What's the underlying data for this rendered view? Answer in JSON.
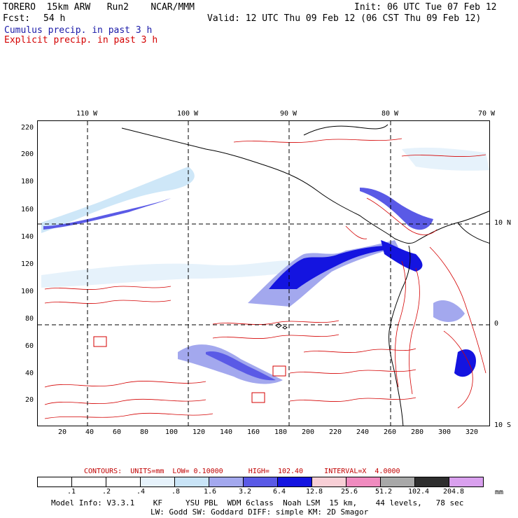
{
  "header": {
    "model": "TORERO  15km ARW   Run2    NCAR/MMM",
    "init": "Init: 06 UTC Tue 07 Feb 12",
    "fcst_label": "Fcst:",
    "fcst_hours": "54 h",
    "valid": "Valid: 12 UTC Thu 09 Feb 12 (06 CST Thu 09 Feb 12)",
    "field1": "Cumulus precip. in past 3 h",
    "field2": "Explicit precip. in past 3 h",
    "field1_color": "#1a1aa8",
    "field2_color": "#d40000"
  },
  "axes": {
    "x_ticks": [
      "20",
      "40",
      "60",
      "80",
      "100",
      "120",
      "140",
      "160",
      "180",
      "200",
      "220",
      "240",
      "260",
      "280",
      "300",
      "320"
    ],
    "y_ticks": [
      "20",
      "40",
      "60",
      "80",
      "100",
      "120",
      "140",
      "160",
      "180",
      "200",
      "220"
    ],
    "lon_labels": [
      "110 W",
      "100 W",
      "90 W",
      "80 W",
      "70 W"
    ],
    "lat_labels": [
      "10 N",
      "0",
      "10 S"
    ]
  },
  "contours": {
    "text": "CONTOURS:  UNITS=mm  LOW= 0.10000      HIGH=  102.40     INTERVAL=X  4.0000",
    "color": "#c00000"
  },
  "colorbar": {
    "labels": [
      ".1",
      ".2",
      ".4",
      ".8",
      "1.6",
      "3.2",
      "6.4",
      "12.8",
      "25.6",
      "51.2",
      "102.4",
      "204.8"
    ],
    "colors": [
      "#ffffff",
      "#ffffff",
      "#ffffff",
      "#e6f2fb",
      "#c9e4f7",
      "#a3a8ee",
      "#5a5ae6",
      "#1414e0",
      "#f8cfd6",
      "#f08bbf",
      "#a8a8a8",
      "#2e2e2e",
      "#d9a0ee"
    ],
    "units": "mm"
  },
  "model_info": {
    "line1": "Model Info: V3.3.1    KF     YSU PBL  WDM 6class  Noah LSM  15 km,    44 levels,   78 sec",
    "line2": "LW: Godd SW: Goddard DIFF: simple KM: 2D Smagor"
  }
}
